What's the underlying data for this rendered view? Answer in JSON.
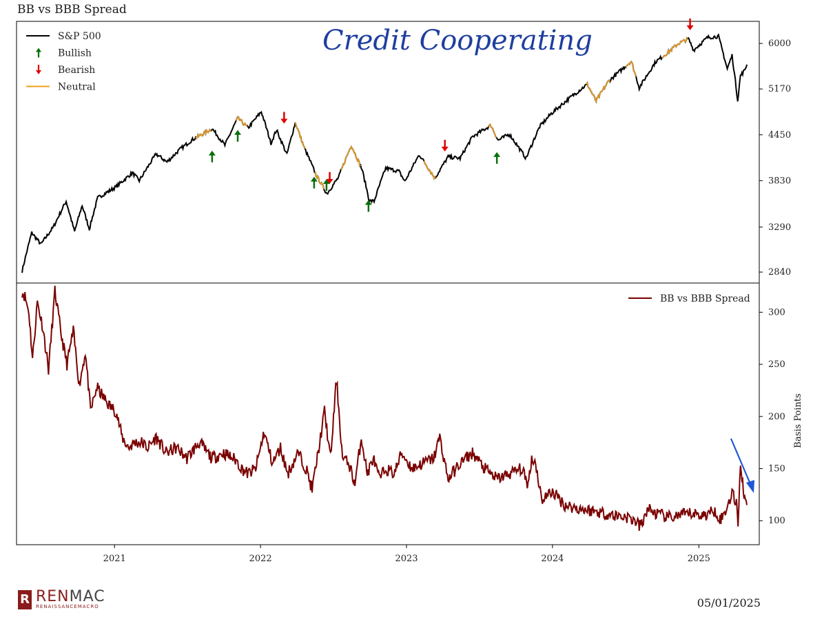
{
  "figure": {
    "title": "BB vs BBB Spread",
    "annotation": "Credit Cooperating",
    "date": "05/01/2025",
    "logo": {
      "main_a": "REN",
      "main_b": "MAC",
      "sub": "RENAISSANCEMACRO",
      "mark": "R"
    }
  },
  "colors": {
    "sp500": "#000000",
    "neutral": "#f0a020",
    "bullish": "#0a6e0a",
    "bearish": "#e00000",
    "spread": "#7a0000",
    "annotation": "#1f56d6"
  },
  "chart_data": [
    {
      "type": "line",
      "title": "",
      "xlabel": "",
      "ylabel": "",
      "y_scale": "log",
      "ylim": [
        2740,
        6450
      ],
      "yticks": [
        2840,
        3290,
        3830,
        4450,
        5170,
        6000
      ],
      "xlim": [
        "2020-05-01",
        "2025-06-01"
      ],
      "legend": {
        "placement": "top-left",
        "entries": [
          "S&P 500",
          "Bullish",
          "Bearish",
          "Neutral"
        ]
      },
      "series": [
        {
          "name": "S&P 500",
          "x": [
            "2020-05-15",
            "2020-06-08",
            "2020-07-01",
            "2020-08-01",
            "2020-09-02",
            "2020-09-23",
            "2020-10-12",
            "2020-10-30",
            "2020-11-20",
            "2021-01-04",
            "2021-02-15",
            "2021-03-04",
            "2021-04-15",
            "2021-05-12",
            "2021-06-15",
            "2021-07-15",
            "2021-08-15",
            "2021-09-02",
            "2021-10-04",
            "2021-11-05",
            "2021-12-01",
            "2022-01-03",
            "2022-01-27",
            "2022-02-10",
            "2022-03-08",
            "2022-03-29",
            "2022-04-20",
            "2022-05-20",
            "2022-06-16",
            "2022-07-15",
            "2022-08-16",
            "2022-09-12",
            "2022-09-30",
            "2022-10-12",
            "2022-11-10",
            "2022-12-13",
            "2022-12-28",
            "2023-02-02",
            "2023-03-13",
            "2023-04-15",
            "2023-05-15",
            "2023-06-15",
            "2023-07-31",
            "2023-08-18",
            "2023-09-15",
            "2023-10-27",
            "2023-11-30",
            "2023-12-29",
            "2024-02-15",
            "2024-03-28",
            "2024-04-19",
            "2024-05-20",
            "2024-07-16",
            "2024-08-05",
            "2024-09-15",
            "2024-10-15",
            "2024-11-11",
            "2024-12-06",
            "2024-12-19",
            "2025-01-23",
            "2025-02-19",
            "2025-03-13",
            "2025-03-25",
            "2025-04-08",
            "2025-04-15",
            "2025-04-24",
            "2025-05-01"
          ],
          "y": [
            2850,
            3230,
            3110,
            3290,
            3580,
            3240,
            3530,
            3270,
            3620,
            3750,
            3930,
            3830,
            4180,
            4070,
            4250,
            4380,
            4480,
            4540,
            4300,
            4700,
            4550,
            4800,
            4330,
            4520,
            4170,
            4630,
            4270,
            3900,
            3670,
            3870,
            4300,
            3970,
            3585,
            3580,
            3990,
            3950,
            3820,
            4170,
            3860,
            4140,
            4120,
            4420,
            4590,
            4370,
            4460,
            4120,
            4570,
            4770,
            5030,
            5250,
            4970,
            5300,
            5660,
            5190,
            5650,
            5820,
            6000,
            6090,
            5870,
            6120,
            6140,
            5520,
            5770,
            4980,
            5400,
            5480,
            5600
          ]
        }
      ],
      "neutral_periods": [
        [
          "2021-07-22",
          "2021-09-01"
        ],
        [
          "2021-11-01",
          "2021-11-30"
        ],
        [
          "2022-03-28",
          "2022-04-22"
        ],
        [
          "2022-05-15",
          "2022-06-10"
        ],
        [
          "2022-07-20",
          "2022-09-10"
        ],
        [
          "2023-02-13",
          "2023-03-15"
        ],
        [
          "2023-07-24",
          "2023-08-14"
        ],
        [
          "2024-03-25",
          "2024-05-25"
        ],
        [
          "2024-07-01",
          "2024-07-28"
        ],
        [
          "2024-10-01",
          "2024-12-05"
        ]
      ],
      "signals": {
        "bullish": [
          {
            "x": "2021-09-02",
            "y": 4150
          },
          {
            "x": "2021-11-05",
            "y": 4440
          },
          {
            "x": "2022-05-15",
            "y": 3810
          },
          {
            "x": "2022-06-15",
            "y": 3780
          },
          {
            "x": "2022-09-28",
            "y": 3530
          },
          {
            "x": "2023-08-15",
            "y": 4130
          }
        ],
        "bearish": [
          {
            "x": "2022-03-01",
            "y": 4700
          },
          {
            "x": "2022-06-23",
            "y": 3860
          },
          {
            "x": "2023-04-07",
            "y": 4290
          },
          {
            "x": "2024-12-10",
            "y": 6380
          }
        ]
      }
    },
    {
      "type": "line",
      "title": "",
      "xlabel": "",
      "ylabel": "Basis Points",
      "ylim": [
        77,
        328
      ],
      "yticks": [
        100,
        150,
        200,
        250,
        300
      ],
      "xticks": [
        "2021",
        "2022",
        "2023",
        "2024",
        "2025"
      ],
      "xlim": [
        "2020-05-01",
        "2025-06-01"
      ],
      "legend": {
        "placement": "top-right",
        "entries": [
          "BB vs BBB Spread"
        ]
      },
      "series": [
        {
          "name": "BB vs BBB Spread",
          "x": [
            "2020-05-15",
            "2020-05-22",
            "2020-06-01",
            "2020-06-10",
            "2020-06-22",
            "2020-07-06",
            "2020-07-20",
            "2020-08-05",
            "2020-08-20",
            "2020-09-04",
            "2020-09-20",
            "2020-10-05",
            "2020-10-20",
            "2020-11-02",
            "2020-11-18",
            "2020-12-01",
            "2020-12-20",
            "2021-01-05",
            "2021-01-20",
            "2021-02-05",
            "2021-02-20",
            "2021-03-10",
            "2021-03-25",
            "2021-04-15",
            "2021-05-10",
            "2021-06-05",
            "2021-07-01",
            "2021-08-01",
            "2021-09-01",
            "2021-10-01",
            "2021-11-01",
            "2021-11-15",
            "2021-12-01",
            "2021-12-20",
            "2022-01-10",
            "2022-01-31",
            "2022-02-20",
            "2022-03-10",
            "2022-04-05",
            "2022-04-25",
            "2022-05-10",
            "2022-05-25",
            "2022-06-10",
            "2022-06-25",
            "2022-07-10",
            "2022-07-25",
            "2022-08-10",
            "2022-08-25",
            "2022-09-10",
            "2022-09-25",
            "2022-10-10",
            "2022-10-25",
            "2022-11-10",
            "2022-12-01",
            "2022-12-20",
            "2023-01-15",
            "2023-02-10",
            "2023-03-10",
            "2023-03-25",
            "2023-04-15",
            "2023-05-15",
            "2023-06-15",
            "2023-07-15",
            "2023-08-15",
            "2023-09-15",
            "2023-10-15",
            "2023-11-01",
            "2023-11-10",
            "2023-11-20",
            "2023-12-05",
            "2024-01-01",
            "2024-02-01",
            "2024-03-01",
            "2024-04-01",
            "2024-05-01",
            "2024-06-01",
            "2024-07-01",
            "2024-07-25",
            "2024-08-05",
            "2024-08-15",
            "2024-08-25",
            "2024-09-15",
            "2024-10-15",
            "2024-11-15",
            "2024-12-15",
            "2025-01-15",
            "2025-02-10",
            "2025-02-25",
            "2025-03-10",
            "2025-03-25",
            "2025-04-05",
            "2025-04-09",
            "2025-04-15",
            "2025-04-24",
            "2025-05-01"
          ],
          "y": [
            320,
            315,
            300,
            255,
            310,
            285,
            245,
            320,
            280,
            250,
            282,
            230,
            262,
            205,
            228,
            220,
            210,
            205,
            180,
            170,
            175,
            175,
            170,
            180,
            165,
            170,
            160,
            175,
            160,
            165,
            158,
            150,
            145,
            150,
            185,
            155,
            170,
            145,
            165,
            150,
            130,
            165,
            205,
            160,
            236,
            160,
            155,
            135,
            180,
            145,
            160,
            140,
            150,
            145,
            165,
            150,
            155,
            160,
            180,
            140,
            155,
            165,
            150,
            140,
            145,
            150,
            135,
            160,
            155,
            120,
            128,
            115,
            112,
            110,
            108,
            105,
            104,
            100,
            95,
            98,
            112,
            107,
            103,
            105,
            107,
            105,
            110,
            101,
            110,
            128,
            115,
            100,
            155,
            125,
            115
          ]
        }
      ]
    }
  ]
}
